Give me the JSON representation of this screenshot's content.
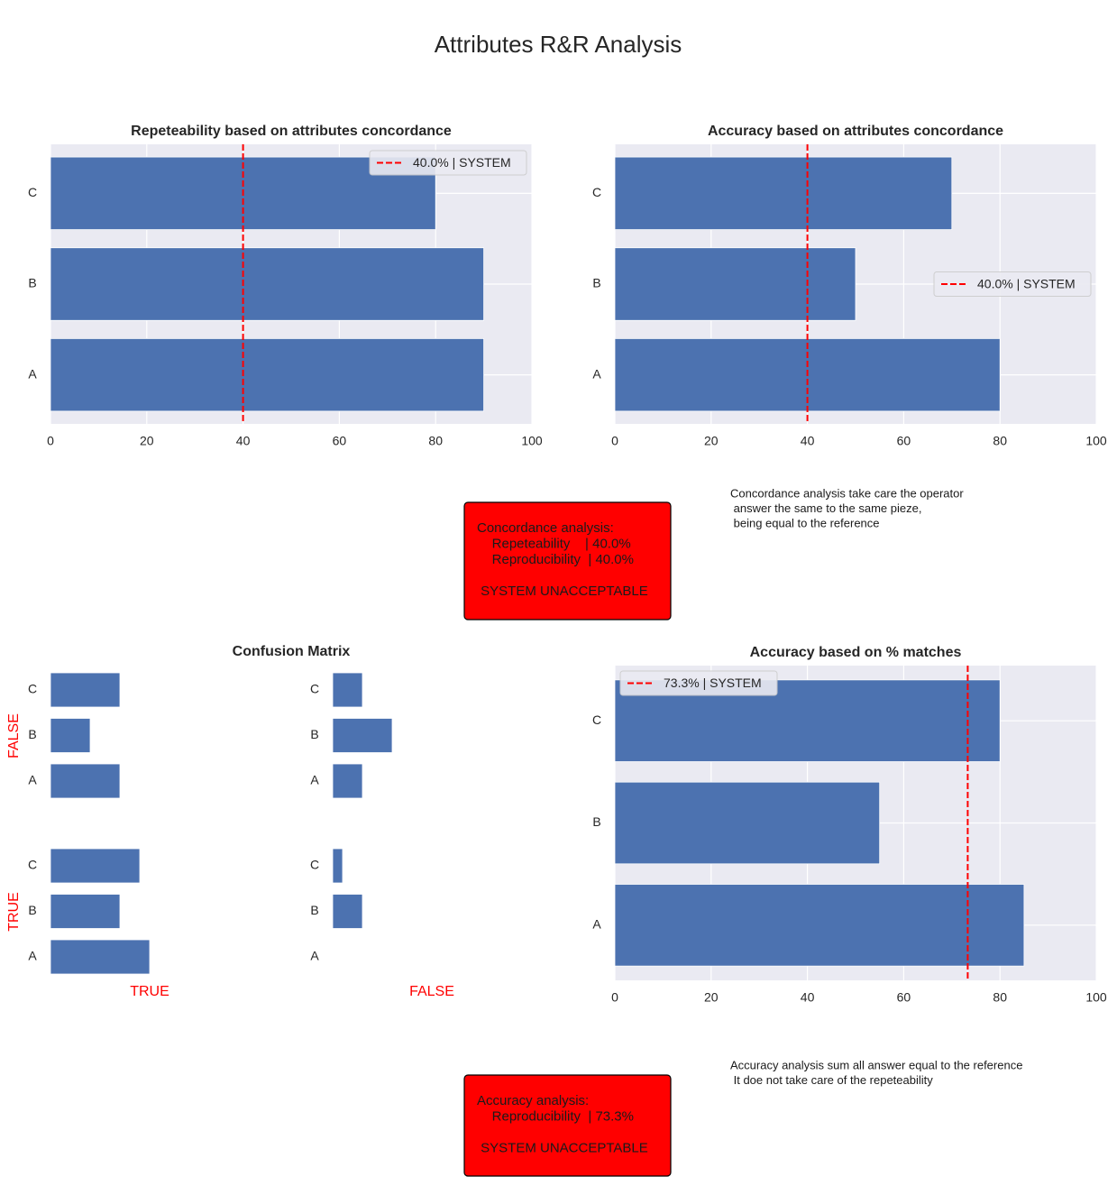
{
  "title": "Attributes R&R Analysis",
  "chart_data": [
    {
      "type": "bar",
      "orientation": "horizontal",
      "title": "Repeteability based on attributes concordance",
      "categories": [
        "A",
        "B",
        "C"
      ],
      "values": [
        90,
        90,
        80
      ],
      "color": "#4c72b0",
      "xlim": [
        0,
        100
      ],
      "xticks": [
        0,
        20,
        40,
        60,
        80,
        100
      ],
      "grid": true,
      "reference": {
        "value": 40,
        "label": "40.0% | SYSTEM",
        "color": "#ff0000"
      },
      "legend": "upper right"
    },
    {
      "type": "bar",
      "orientation": "horizontal",
      "title": "Accuracy based on attributes concordance",
      "categories": [
        "A",
        "B",
        "C"
      ],
      "values": [
        80,
        50,
        70
      ],
      "color": "#4c72b0",
      "xlim": [
        0,
        100
      ],
      "xticks": [
        0,
        20,
        40,
        60,
        80,
        100
      ],
      "grid": true,
      "reference": {
        "value": 40,
        "label": "40.0% | SYSTEM",
        "color": "#ff0000"
      },
      "legend": "center right"
    },
    {
      "type": "confusion_matrix",
      "title": "Confusion Matrix",
      "rows": [
        "FALSE",
        "TRUE"
      ],
      "columns": [
        "TRUE",
        "FALSE"
      ],
      "categories": [
        "A",
        "B",
        "C"
      ],
      "values": [
        [
          [
            7,
            4,
            7
          ],
          [
            3,
            6,
            3
          ]
        ],
        [
          [
            10,
            7,
            9
          ],
          [
            0,
            3,
            1
          ]
        ]
      ],
      "xlim": [
        0,
        25
      ],
      "color": "#4c72b0",
      "label_color": "#ff0000"
    },
    {
      "type": "bar",
      "orientation": "horizontal",
      "title": "Accuracy based on % matches",
      "categories": [
        "A",
        "B",
        "C"
      ],
      "values": [
        85,
        55,
        80
      ],
      "color": "#4c72b0",
      "xlim": [
        0,
        100
      ],
      "xticks": [
        0,
        20,
        40,
        60,
        80,
        100
      ],
      "grid": true,
      "reference": {
        "value": 73.3,
        "label": "73.3% | SYSTEM",
        "color": "#ff0000"
      },
      "legend": "upper left"
    }
  ],
  "summary_boxes": [
    {
      "lines": [
        "Concordance analysis:",
        "    Repeteability    | 40.0%",
        "    Reproducibility  | 40.0%",
        "",
        " SYSTEM UNACCEPTABLE"
      ]
    },
    {
      "lines": [
        "Accuracy analysis:",
        "    Reproducibility  | 73.3%",
        "",
        " SYSTEM UNACCEPTABLE"
      ]
    }
  ],
  "notes": [
    {
      "lines": [
        "Concordance analysis take care the operator",
        " answer the same to the same pieze,",
        " being equal to the reference"
      ]
    },
    {
      "lines": [
        "Accuracy analysis sum all answer equal to the reference",
        " It doe not take care of the repeteability"
      ]
    }
  ]
}
